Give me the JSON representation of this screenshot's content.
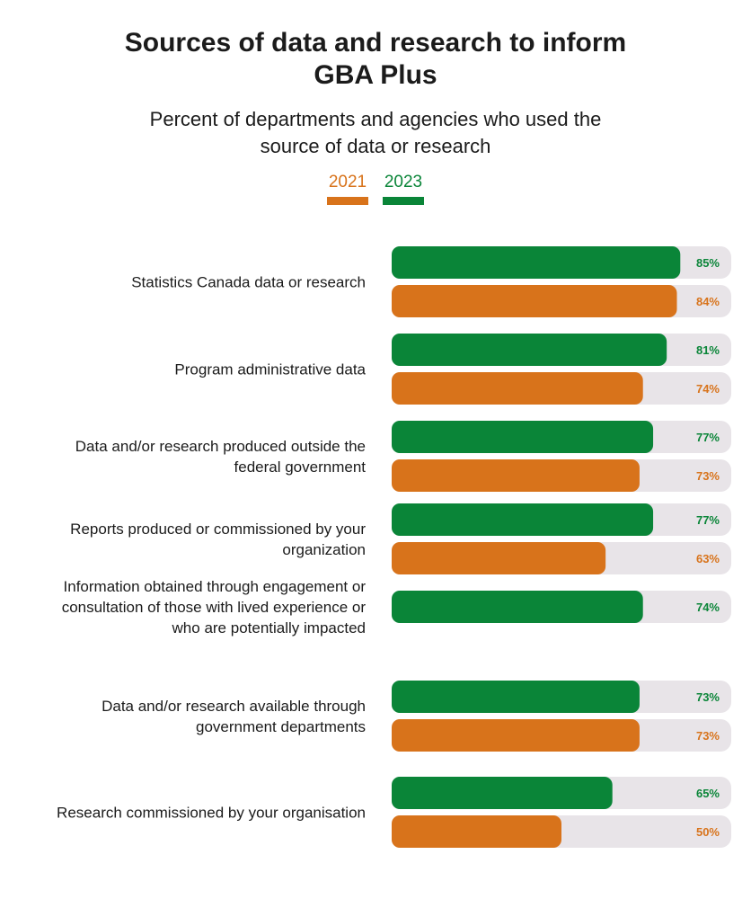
{
  "title_lines": [
    "Sources of data and research to inform",
    "GBA Plus"
  ],
  "subtitle_lines": [
    "Percent of departments and agencies who used the",
    "source of data or research"
  ],
  "colors": {
    "y2021": "#d8731b",
    "y2023": "#0a8538",
    "track": "#e8e4e8"
  },
  "chart_data": {
    "type": "bar",
    "orientation": "horizontal",
    "title": "Sources of data and research to inform GBA Plus",
    "subtitle": "Percent of departments and agencies who used the source of data or research",
    "legend": {
      "placement": "top-center",
      "entries": [
        "2021",
        "2023"
      ]
    },
    "xlim": [
      0,
      100
    ],
    "unit": "%",
    "grid": false,
    "categories": [
      {
        "label_lines": [
          "Statistics Canada data or research"
        ],
        "y2023": 85,
        "y2021": 84
      },
      {
        "label_lines": [
          "Program administrative data"
        ],
        "y2023": 81,
        "y2021": 74
      },
      {
        "label_lines": [
          "Data and/or research produced outside the",
          "federal government"
        ],
        "y2023": 77,
        "y2021": 73
      },
      {
        "label_lines": [
          "Reports produced or commissioned by your",
          "organization"
        ],
        "y2023": 77,
        "y2021": 63
      },
      {
        "label_lines": [
          "Information obtained through engagement or",
          "consultation of those with lived experience or",
          "who are potentially impacted"
        ],
        "y2023": 74,
        "y2021": null
      },
      {
        "label_lines": [
          "Data and/or research available through",
          "government departments"
        ],
        "y2023": 73,
        "y2021": 73
      },
      {
        "label_lines": [
          "Research commissioned by your organisation"
        ],
        "y2023": 65,
        "y2021": 50
      }
    ],
    "series": [
      {
        "name": "2023",
        "key": "y2023"
      },
      {
        "name": "2021",
        "key": "y2021"
      }
    ]
  }
}
